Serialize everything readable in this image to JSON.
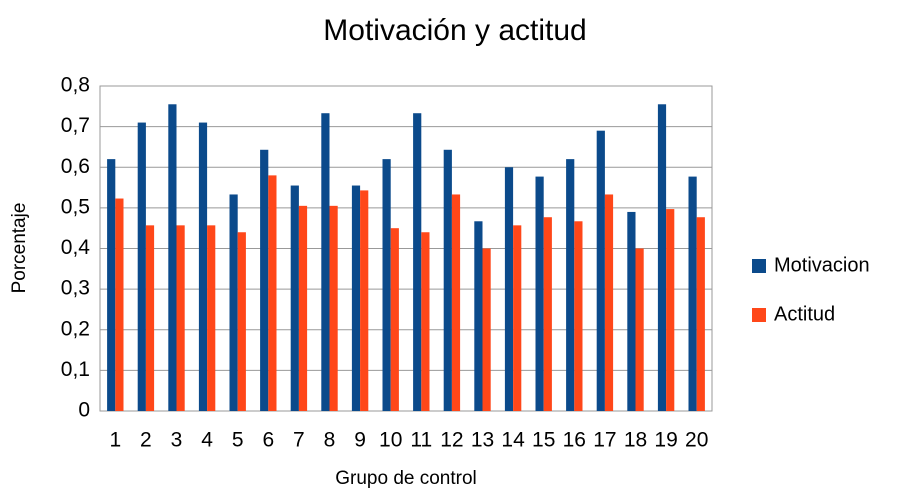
{
  "chart_data": {
    "type": "bar",
    "title": "Motivación y actitud",
    "x_label": "Grupo de control",
    "y_label": "Porcentaje",
    "categories": [
      "1",
      "2",
      "3",
      "4",
      "5",
      "6",
      "7",
      "8",
      "9",
      "10",
      "11",
      "12",
      "13",
      "14",
      "15",
      "16",
      "17",
      "18",
      "19",
      "20"
    ],
    "series": [
      {
        "name": "Motivacion",
        "color": "#0b4a8b",
        "values": [
          0.62,
          0.71,
          0.755,
          0.71,
          0.533,
          0.643,
          0.555,
          0.733,
          0.555,
          0.62,
          0.733,
          0.643,
          0.467,
          0.6,
          0.577,
          0.62,
          0.69,
          0.49,
          0.755,
          0.577
        ]
      },
      {
        "name": "Actitud",
        "color": "#ff4719",
        "values": [
          0.523,
          0.457,
          0.457,
          0.457,
          0.44,
          0.58,
          0.505,
          0.505,
          0.543,
          0.45,
          0.44,
          0.533,
          0.4,
          0.457,
          0.477,
          0.467,
          0.533,
          0.4,
          0.497,
          0.477
        ]
      }
    ],
    "ylim": [
      0,
      0.8
    ],
    "yticks": [
      0,
      {
        "value": 0.1,
        "label": "0,1"
      },
      {
        "value": 0.2,
        "label": "0,2"
      },
      {
        "value": 0.3,
        "label": "0,3"
      },
      {
        "value": 0.4,
        "label": "0,4"
      },
      {
        "value": 0.5,
        "label": "0,5"
      },
      {
        "value": 0.6,
        "label": "0,6"
      },
      {
        "value": 0.7,
        "label": "0,7"
      },
      {
        "value": 0.8,
        "label": "0,8"
      }
    ],
    "grid": true,
    "legend": "right"
  }
}
